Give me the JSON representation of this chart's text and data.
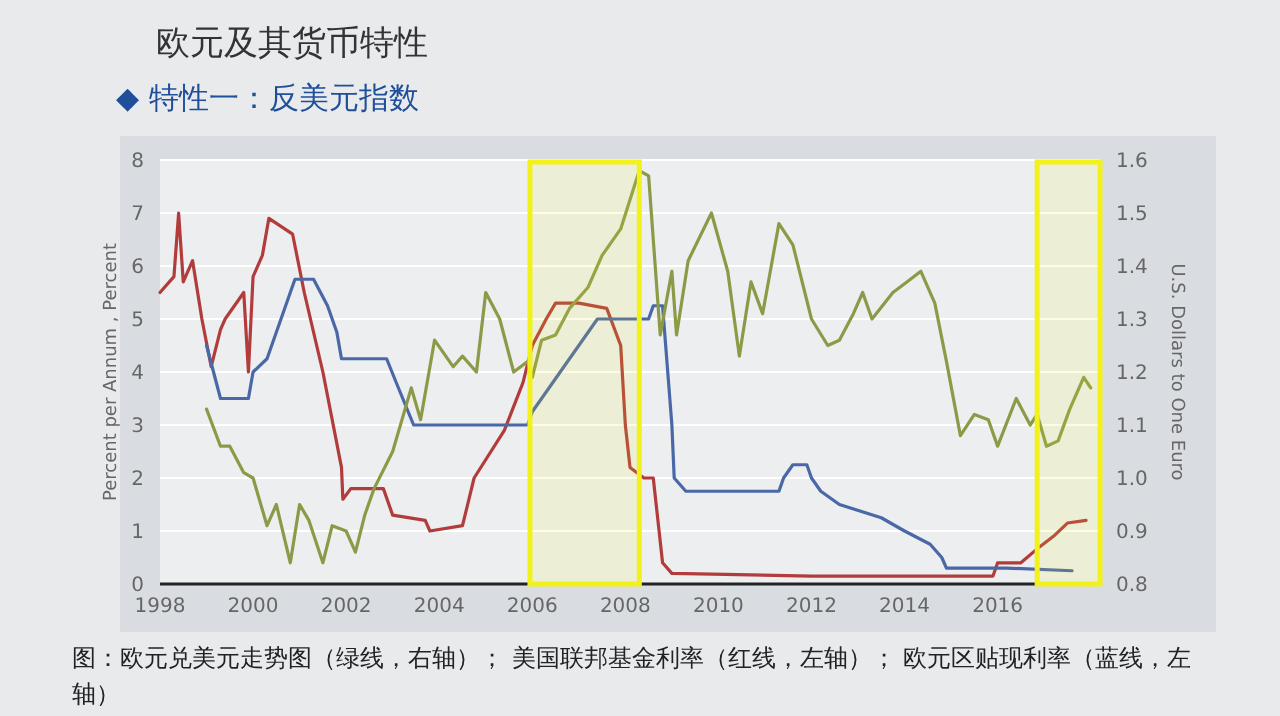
{
  "chart_data": {
    "type": "line",
    "title": "欧元及其货币特性",
    "subtitle": "◆ 特性一：反美元指数",
    "ylabel": "Percent per Annum , Percent",
    "y2label": "U.S. Dollars to One Euro",
    "annotations": [
      "图：欧元兑美元走势图（绿线，右轴）； 美国联邦基金利率（红线，左轴）； 欧元区贴现利率（蓝线，左轴）"
    ],
    "xlim": [
      1998,
      2018.2
    ],
    "xticks": [
      1998,
      2000,
      2002,
      2004,
      2006,
      2008,
      2010,
      2012,
      2014,
      2016
    ],
    "ylim": [
      0,
      8
    ],
    "yticks": [
      0,
      1,
      2,
      3,
      4,
      5,
      6,
      7,
      8
    ],
    "y2lim": [
      0.8,
      1.6
    ],
    "y2ticks": [
      {
        "value": 0.8,
        "label": "0.8"
      },
      {
        "value": 0.9,
        "label": "0.9"
      },
      {
        "value": 1.0,
        "label": "1.0"
      },
      {
        "value": 1.1,
        "label": "1.1"
      },
      {
        "value": 1.2,
        "label": "1.2"
      },
      {
        "value": 1.3,
        "label": "1.3"
      },
      {
        "value": 1.4,
        "label": "1.4"
      },
      {
        "value": 1.5,
        "label": "1.5"
      },
      {
        "value": 1.6,
        "label": "1.6"
      }
    ],
    "grid": "y",
    "line_style": "solid",
    "marker": "none",
    "bands": [
      {
        "axis": "x",
        "from": 2005.95,
        "to": 2008.3,
        "color": "#f2f21a"
      },
      {
        "axis": "x",
        "from": 2016.85,
        "to": 2018.2,
        "color": "#f2f21a"
      }
    ],
    "series": [
      {
        "color": "#b23c3c",
        "x": [
          1998,
          1998.3,
          1998.4,
          1998.5,
          1998.7,
          1998.9,
          1999.1,
          1999.3,
          1999.4,
          1999.8,
          1999.9,
          2000.0,
          2000.2,
          2000.34,
          2000.85,
          2001.1,
          2001.5,
          2001.9,
          2001.93,
          2002.1,
          2002.8,
          2003.0,
          2003.7,
          2003.8,
          2004.5,
          2004.75,
          2005.4,
          2005.8,
          2006.0,
          2006.3,
          2006.5,
          2007.0,
          2007.6,
          2007.9,
          2008.0,
          2008.1,
          2008.4,
          2008.6,
          2008.8,
          2009.0,
          2012.0,
          2015.9,
          2016.0,
          2016.5,
          2016.9,
          2017.2,
          2017.5,
          2017.9
        ],
        "values": [
          5.5,
          5.8,
          7.0,
          5.7,
          6.1,
          5.0,
          4.1,
          4.8,
          5.0,
          5.5,
          4.0,
          5.8,
          6.2,
          6.9,
          6.6,
          5.5,
          4.0,
          2.2,
          1.6,
          1.8,
          1.8,
          1.3,
          1.2,
          1.0,
          1.1,
          2.0,
          2.9,
          3.8,
          4.5,
          5.0,
          5.3,
          5.3,
          5.2,
          4.5,
          3.0,
          2.2,
          2.0,
          2.0,
          0.4,
          0.2,
          0.15,
          0.15,
          0.4,
          0.4,
          0.7,
          0.9,
          1.15,
          1.2
        ]
      },
      {
        "color": "#4a68a6",
        "x": [
          1999.0,
          1999.3,
          1999.9,
          2000.0,
          2000.3,
          2000.5,
          2000.8,
          2000.9,
          2001.3,
          2001.6,
          2001.8,
          2001.9,
          2002.87,
          2003.1,
          2003.45,
          2005.9,
          2006.0,
          2006.2,
          2006.4,
          2006.6,
          2006.8,
          2007.0,
          2007.4,
          2008.5,
          2008.6,
          2008.8,
          2009.0,
          2009.05,
          2009.3,
          2011.3,
          2011.4,
          2011.6,
          2011.9,
          2012.0,
          2012.2,
          2012.6,
          2013.5,
          2014.0,
          2014.55,
          2014.8,
          2014.9,
          2016.2,
          2017.6
        ],
        "values": [
          4.5,
          3.5,
          3.5,
          4.0,
          4.25,
          4.75,
          5.5,
          5.75,
          5.75,
          5.25,
          4.75,
          4.25,
          4.25,
          3.75,
          3.0,
          3.0,
          3.25,
          3.5,
          3.75,
          4.0,
          4.25,
          4.5,
          5.0,
          5.0,
          5.25,
          5.25,
          3.0,
          2.0,
          1.75,
          1.75,
          2.0,
          2.25,
          2.25,
          2.0,
          1.75,
          1.5,
          1.25,
          1.0,
          0.75,
          0.5,
          0.3,
          0.3,
          0.25
        ]
      },
      {
        "color": "#8c9a48",
        "axis": "y2",
        "x": [
          1999.0,
          1999.3,
          1999.5,
          1999.8,
          2000.0,
          2000.3,
          2000.5,
          2000.8,
          2001.0,
          2001.2,
          2001.5,
          2001.7,
          2002.0,
          2002.2,
          2002.4,
          2002.6,
          2003.0,
          2003.4,
          2003.6,
          2003.9,
          2004.3,
          2004.5,
          2004.8,
          2005.0,
          2005.3,
          2005.6,
          2005.9,
          2006.0,
          2006.2,
          2006.5,
          2006.8,
          2007.2,
          2007.5,
          2007.9,
          2008.3,
          2008.5,
          2008.75,
          2009.0,
          2009.1,
          2009.35,
          2009.85,
          2010.2,
          2010.45,
          2010.7,
          2010.95,
          2011.3,
          2011.6,
          2012.0,
          2012.35,
          2012.6,
          2012.9,
          2013.1,
          2013.3,
          2013.75,
          2014.05,
          2014.35,
          2014.65,
          2014.9,
          2015.2,
          2015.5,
          2015.8,
          2016.0,
          2016.4,
          2016.7,
          2016.85,
          2017.05,
          2017.3,
          2017.55,
          2017.85,
          2018.0
        ],
        "values": [
          1.13,
          1.06,
          1.06,
          1.01,
          1.0,
          0.91,
          0.95,
          0.84,
          0.95,
          0.92,
          0.84,
          0.91,
          0.9,
          0.86,
          0.93,
          0.98,
          1.05,
          1.17,
          1.11,
          1.26,
          1.21,
          1.23,
          1.2,
          1.35,
          1.3,
          1.2,
          1.22,
          1.19,
          1.26,
          1.27,
          1.32,
          1.36,
          1.42,
          1.47,
          1.58,
          1.57,
          1.27,
          1.39,
          1.27,
          1.41,
          1.5,
          1.39,
          1.23,
          1.37,
          1.31,
          1.48,
          1.44,
          1.3,
          1.25,
          1.26,
          1.31,
          1.35,
          1.3,
          1.35,
          1.37,
          1.39,
          1.33,
          1.22,
          1.08,
          1.12,
          1.11,
          1.06,
          1.15,
          1.1,
          1.12,
          1.06,
          1.07,
          1.13,
          1.19,
          1.17
        ]
      }
    ]
  }
}
